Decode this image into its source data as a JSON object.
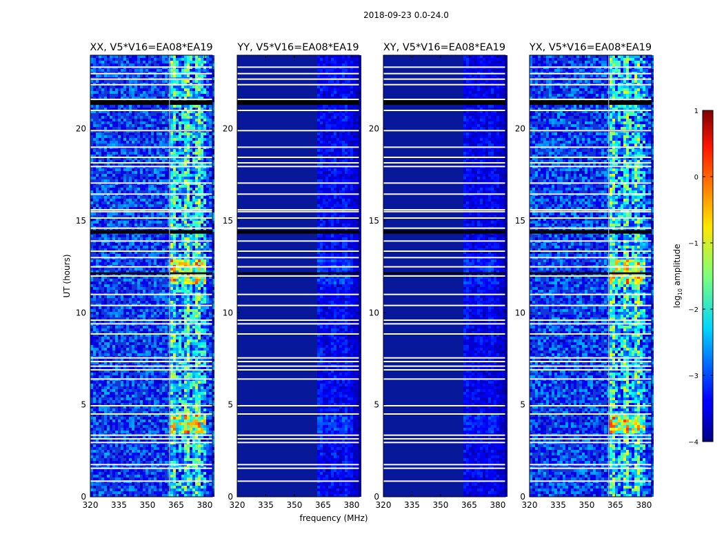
{
  "figure": {
    "suptitle": "2018-09-23 0.0-24.0"
  },
  "chart_data": {
    "type": "heatmap",
    "description_of_scale": "log10 amplitude",
    "xlabel": "frequency (MHz)",
    "ylabel": "UT (hours)",
    "xlim": [
      320,
      384
    ],
    "ylim": [
      0,
      24
    ],
    "x_ticks": [
      320,
      335,
      350,
      365,
      380
    ],
    "y_ticks": [
      0,
      5,
      10,
      15,
      20
    ],
    "colorbar": {
      "label_prefix": "log",
      "label_sub": "10",
      "label_suffix": " amplitude",
      "range": [
        -4,
        1
      ],
      "ticks": [
        1,
        0,
        -1,
        -2,
        -3,
        -4
      ],
      "tick_labels": [
        "1",
        "0",
        "−1",
        "−2",
        "−3",
        "−4"
      ]
    },
    "panels": [
      {
        "title": "XX, V5*V16=EA08*EA19",
        "intensity": 1.0
      },
      {
        "title": "YY, V5*V16=EA08*EA19",
        "intensity": 0.25
      },
      {
        "title": "XY, V5*V16=EA08*EA19",
        "intensity": 0.2
      },
      {
        "title": "YX, V5*V16=EA08*EA19",
        "intensity": 1.0
      }
    ],
    "rfi_band_mhz": [
      361.5,
      380.5
    ],
    "bright_bands_ut": [
      [
        3.6,
        4.6
      ],
      [
        11.6,
        12.9
      ]
    ],
    "flagged_gaps_ut": [
      0.85,
      1.55,
      1.75,
      2.95,
      3.15,
      3.35,
      4.5,
      4.95,
      6.4,
      6.9,
      7.1,
      7.35,
      7.55,
      8.85,
      9.4,
      9.6,
      10.4,
      11.0,
      12.0,
      12.5,
      13.0,
      13.35,
      13.9,
      14.6,
      15.15,
      15.5,
      15.6,
      16.45,
      17.05,
      17.95,
      18.15,
      18.45,
      19.0,
      19.9,
      21.0,
      21.6,
      22.4,
      22.7,
      23.0,
      23.35
    ]
  }
}
